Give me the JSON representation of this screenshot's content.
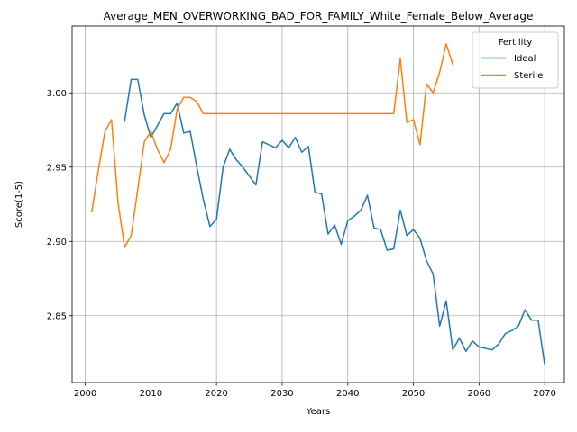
{
  "chart_data": {
    "type": "line",
    "title": "Average_MEN_OVERWORKING_BAD_FOR_FAMILY_White_Female_Below_Average",
    "xlabel": "Years",
    "ylabel": "Score(1-5)",
    "xlim": [
      1998,
      2073
    ],
    "ylim": [
      2.805,
      3.045
    ],
    "xticks": [
      2000,
      2010,
      2020,
      2030,
      2040,
      2050,
      2060,
      2070
    ],
    "yticks": [
      2.85,
      2.9,
      2.95,
      3.0
    ],
    "ytick_labels": [
      "2.85",
      "2.90",
      "2.95",
      "3.00"
    ],
    "grid": true,
    "legend": {
      "title": "Fertility",
      "placement": "top-right"
    },
    "series": [
      {
        "name": "Ideal",
        "color": "#1f77b4",
        "x": [
          2006,
          2007,
          2008,
          2009,
          2010,
          2011,
          2012,
          2013,
          2014,
          2015,
          2016,
          2017,
          2018,
          2019,
          2020,
          2021,
          2022,
          2023,
          2024,
          2025,
          2026,
          2027,
          2028,
          2029,
          2030,
          2031,
          2032,
          2033,
          2034,
          2035,
          2036,
          2037,
          2038,
          2039,
          2040,
          2041,
          2042,
          2043,
          2044,
          2045,
          2046,
          2047,
          2048,
          2049,
          2050,
          2051,
          2052,
          2053,
          2054,
          2055,
          2056,
          2057,
          2058,
          2059,
          2060,
          2061,
          2062,
          2063,
          2064,
          2065,
          2066,
          2067,
          2068,
          2069,
          2070
        ],
        "values": [
          2.981,
          3.009,
          3.009,
          2.985,
          2.97,
          2.978,
          2.986,
          2.986,
          2.993,
          2.973,
          2.974,
          2.95,
          2.928,
          2.91,
          2.915,
          2.95,
          2.962,
          2.955,
          2.95,
          2.944,
          2.938,
          2.967,
          2.965,
          2.963,
          2.968,
          2.963,
          2.97,
          2.96,
          2.964,
          2.933,
          2.932,
          2.905,
          2.911,
          2.898,
          2.914,
          2.917,
          2.921,
          2.931,
          2.909,
          2.908,
          2.894,
          2.895,
          2.921,
          2.904,
          2.908,
          2.902,
          2.887,
          2.878,
          2.843,
          2.86,
          2.827,
          2.835,
          2.826,
          2.833,
          2.829,
          2.828,
          2.827,
          2.831,
          2.838,
          2.84,
          2.843,
          2.854,
          2.847,
          2.847,
          2.817
        ]
      },
      {
        "name": "Sterile",
        "color": "#ff7f0e",
        "x": [
          2001,
          2002,
          2003,
          2004,
          2005,
          2006,
          2007,
          2008,
          2009,
          2010,
          2011,
          2012,
          2013,
          2014,
          2015,
          2016,
          2017,
          2018,
          2019,
          2020,
          2021,
          2022,
          2023,
          2024,
          2025,
          2026,
          2027,
          2028,
          2029,
          2030,
          2031,
          2032,
          2033,
          2034,
          2035,
          2036,
          2037,
          2038,
          2039,
          2040,
          2041,
          2042,
          2043,
          2044,
          2045,
          2046,
          2047,
          2048,
          2049,
          2050,
          2051,
          2052,
          2053,
          2054,
          2055,
          2056
        ],
        "values": [
          2.92,
          2.948,
          2.974,
          2.982,
          2.926,
          2.896,
          2.904,
          2.935,
          2.967,
          2.974,
          2.962,
          2.953,
          2.962,
          2.989,
          2.997,
          2.997,
          2.994,
          2.986,
          2.986,
          2.986,
          2.986,
          2.986,
          2.986,
          2.986,
          2.986,
          2.986,
          2.986,
          2.986,
          2.986,
          2.986,
          2.986,
          2.986,
          2.986,
          2.986,
          2.986,
          2.986,
          2.986,
          2.986,
          2.986,
          2.986,
          2.986,
          2.986,
          2.986,
          2.986,
          2.986,
          2.986,
          2.986,
          3.023,
          2.98,
          2.982,
          2.965,
          3.006,
          3.0,
          3.014,
          3.033,
          3.019
        ]
      }
    ]
  }
}
